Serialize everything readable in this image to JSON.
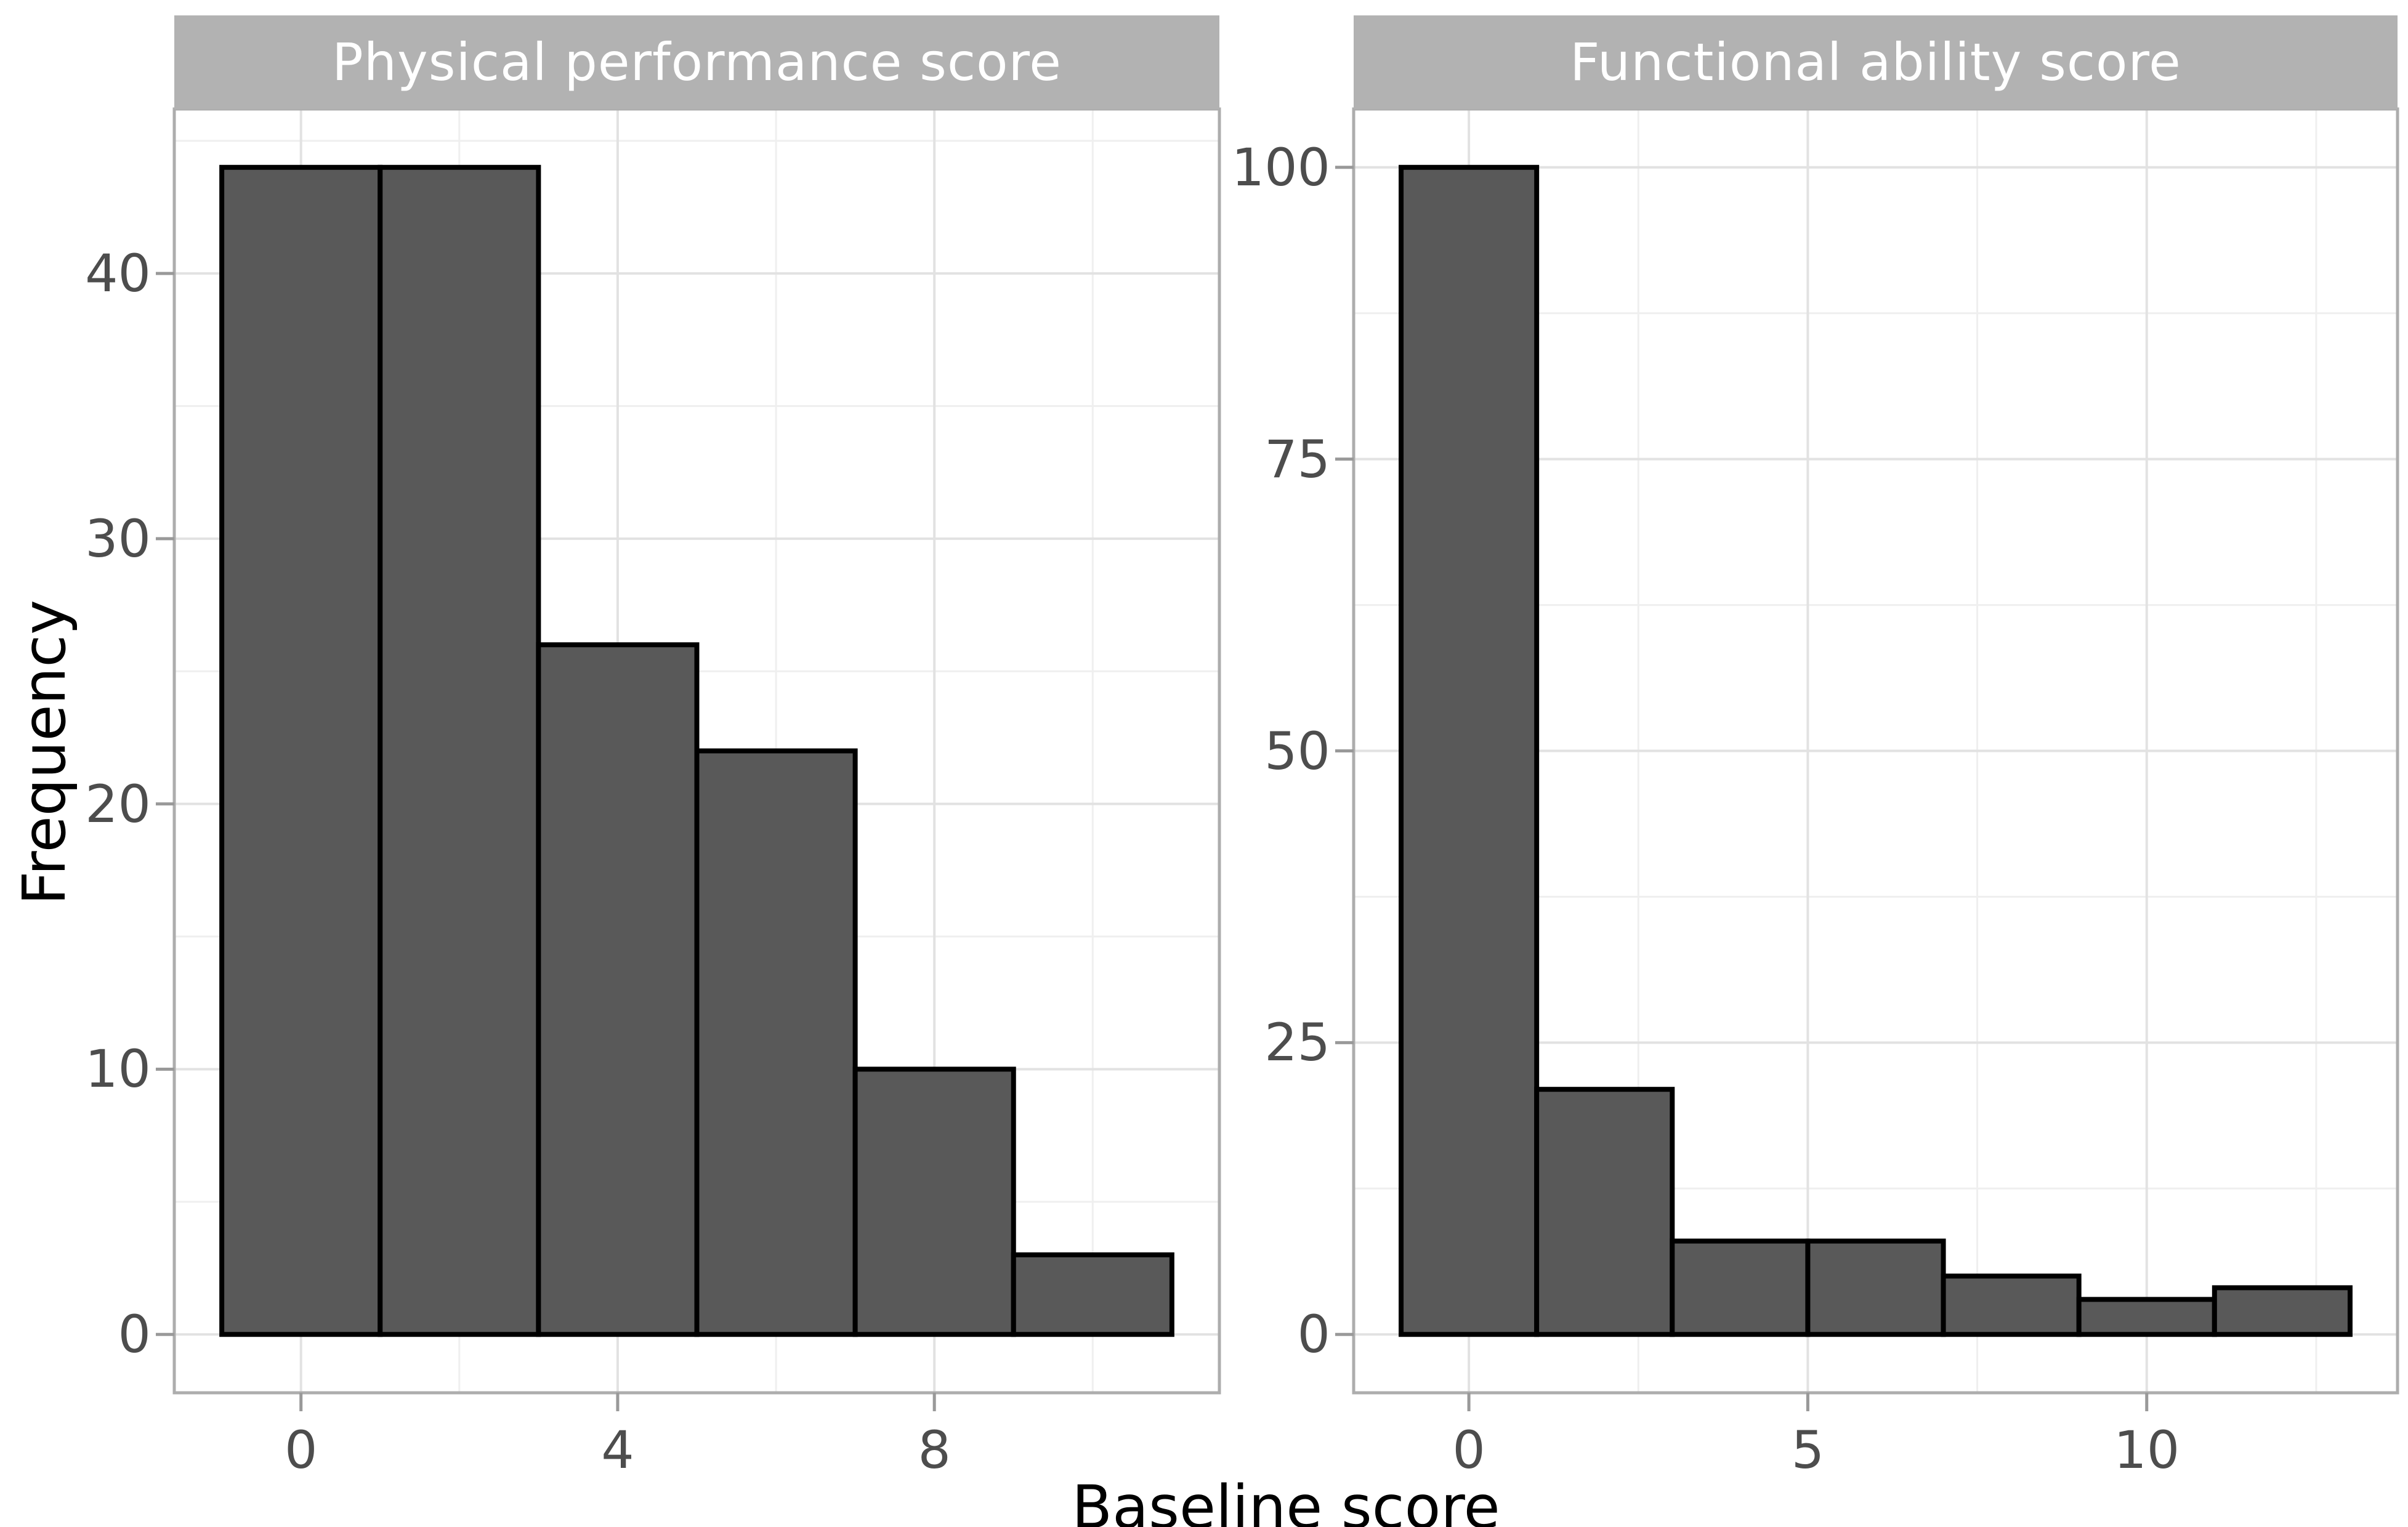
{
  "figure": {
    "xlabel": "Baseline score",
    "ylabel": "Frequency",
    "background": "#ffffff"
  },
  "style": {
    "bar_fill": "#595959",
    "bar_stroke": "#000000",
    "strip_background": "#b2b2b2",
    "strip_text_color": "#ffffff",
    "panel_background": "#ffffff",
    "panel_border": "#adadad",
    "grid_major": "#e2e2e2",
    "grid_minor": "#efefef",
    "tick_mark_color": "#999999",
    "tick_label_color": "#4d4d4d",
    "axis_title_color": "#000000"
  },
  "chart_data": [
    {
      "type": "bar",
      "subtype": "histogram",
      "title": "Physical performance score",
      "xlabel": "Baseline score",
      "ylabel": "Frequency",
      "bin_edges": [
        -1,
        1,
        3,
        5,
        7,
        9,
        11
      ],
      "counts": [
        44,
        44,
        26,
        22,
        10,
        3
      ],
      "x_ticks": [
        0,
        4,
        8
      ],
      "y_ticks": [
        0,
        10,
        20,
        30,
        40
      ],
      "xlim": [
        -1,
        11
      ],
      "ylim": [
        0,
        44
      ],
      "grid": "major+minor",
      "legend": "none"
    },
    {
      "type": "bar",
      "subtype": "histogram",
      "title": "Functional ability score",
      "xlabel": "Baseline score",
      "ylabel": "Frequency",
      "bin_edges": [
        -1,
        1,
        3,
        5,
        7,
        9,
        11,
        13
      ],
      "counts": [
        100,
        21,
        8,
        8,
        5,
        3,
        4
      ],
      "x_ticks": [
        0,
        5,
        10
      ],
      "y_ticks": [
        0,
        25,
        50,
        75,
        100
      ],
      "xlim": [
        -1,
        13
      ],
      "ylim": [
        0,
        100
      ],
      "grid": "major+minor",
      "legend": "none"
    }
  ]
}
